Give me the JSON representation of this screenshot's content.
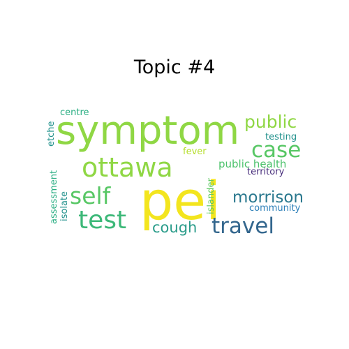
{
  "title": "Topic #4",
  "palette": {
    "yellow": "#f3e51e",
    "lime": "#8fd744",
    "green": "#58c765",
    "teal": "#2a9c8a",
    "blue": "#33668d",
    "navy": "#3f4889",
    "purple": "#472d7b",
    "aqua": "#27ad81",
    "cyan": "#21918c"
  },
  "words": [
    {
      "id": "pei",
      "text": "pei",
      "color": "#f3e51e"
    },
    {
      "id": "symptom",
      "text": "symptom",
      "color": "#8fd744"
    },
    {
      "id": "ottawa",
      "text": "ottawa",
      "color": "#8fd744"
    },
    {
      "id": "public",
      "text": "public",
      "color": "#8fd744"
    },
    {
      "id": "case",
      "text": "case",
      "color": "#58c765"
    },
    {
      "id": "self",
      "text": "self",
      "color": "#58c765"
    },
    {
      "id": "test",
      "text": "test",
      "color": "#3cb878"
    },
    {
      "id": "travel",
      "text": "travel",
      "color": "#33668d"
    },
    {
      "id": "morrison",
      "text": "morrison",
      "color": "#2a788e"
    },
    {
      "id": "cough",
      "text": "cough",
      "color": "#2a9c8a"
    },
    {
      "id": "public-health",
      "text": "public health",
      "color": "#4cc26c"
    },
    {
      "id": "territory",
      "text": "territory",
      "color": "#472d7b"
    },
    {
      "id": "community",
      "text": "community",
      "color": "#2c7fb8"
    },
    {
      "id": "testing",
      "text": "testing",
      "color": "#21918c"
    },
    {
      "id": "fever",
      "text": "fever",
      "color": "#b5de2b"
    },
    {
      "id": "centre",
      "text": "centre",
      "color": "#27ad81"
    },
    {
      "id": "etche",
      "text": "etche",
      "color": "#21918c"
    },
    {
      "id": "assessment",
      "text": "assessment",
      "color": "#27ad81"
    },
    {
      "id": "isolate",
      "text": "isolate",
      "color": "#21918c"
    },
    {
      "id": "islander",
      "text": "islander",
      "color": "#5ec962"
    }
  ]
}
